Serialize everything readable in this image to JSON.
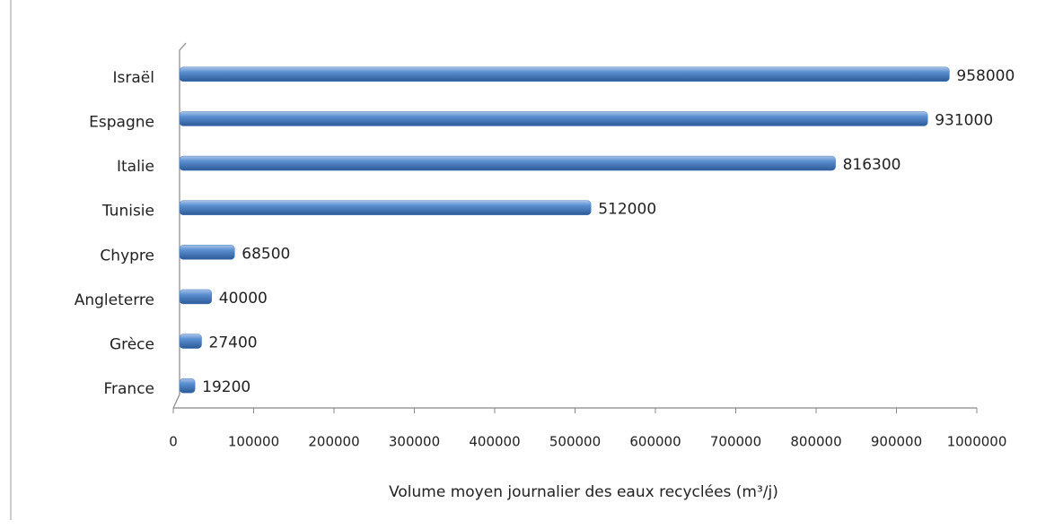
{
  "chart_data": {
    "type": "bar",
    "orientation": "horizontal",
    "x_label": "Volume moyen journalier des eaux recyclées (m³/j)",
    "categories": [
      "Israël",
      "Espagne",
      "Italie",
      "Tunisie",
      "Chypre",
      "Angleterre",
      "Grèce",
      "France"
    ],
    "values": [
      958000,
      931000,
      816300,
      512000,
      68500,
      40000,
      27400,
      19200
    ],
    "color": "#4a7ebb",
    "xlim": [
      0,
      1000000
    ],
    "xticks": [
      0,
      100000,
      200000,
      300000,
      400000,
      500000,
      600000,
      700000,
      800000,
      900000,
      1000000
    ]
  }
}
